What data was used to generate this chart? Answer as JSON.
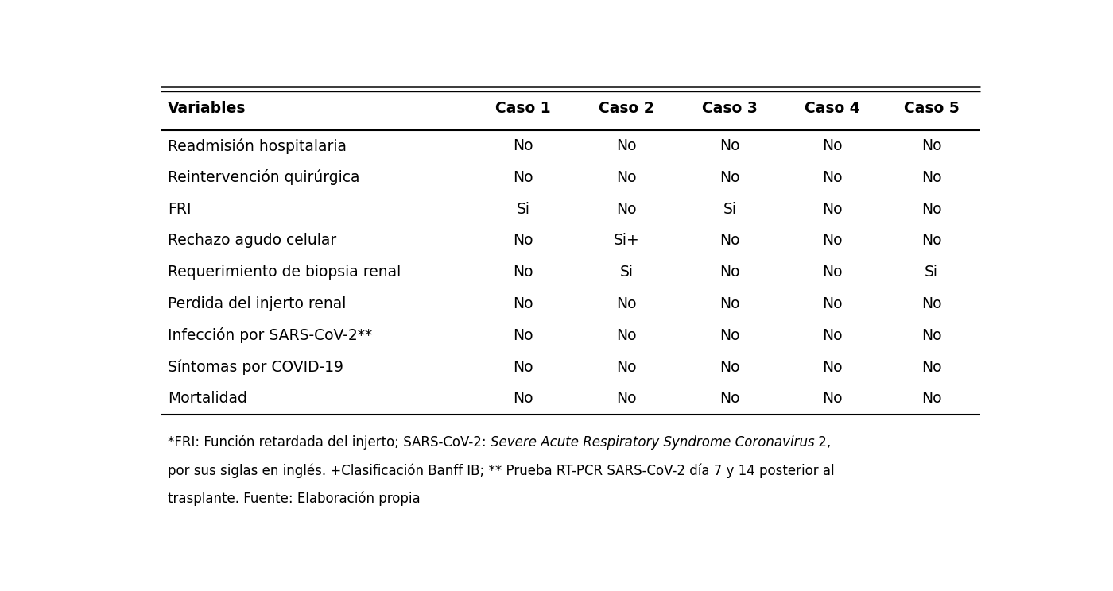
{
  "headers": [
    "Variables",
    "Caso 1",
    "Caso 2",
    "Caso 3",
    "Caso 4",
    "Caso 5"
  ],
  "rows": [
    [
      "Readmisión hospitalaria",
      "No",
      "No",
      "No",
      "No",
      "No"
    ],
    [
      "Reintervención quirúrgica",
      "No",
      "No",
      "No",
      "No",
      "No"
    ],
    [
      "FRI",
      "Si",
      "No",
      "Si",
      "No",
      "No"
    ],
    [
      "Rechazo agudo celular",
      "No",
      "Si+",
      "No",
      "No",
      "No"
    ],
    [
      "Requerimiento de biopsia renal",
      "No",
      "Si",
      "No",
      "No",
      "Si"
    ],
    [
      "Perdida del injerto renal",
      "No",
      "No",
      "No",
      "No",
      "No"
    ],
    [
      "Infección por SARS-CoV-2**",
      "No",
      "No",
      "No",
      "No",
      "No"
    ],
    [
      "Síntomas por COVID-19",
      "No",
      "No",
      "No",
      "No",
      "No"
    ],
    [
      "Mortalidad",
      "No",
      "No",
      "No",
      "No",
      "No"
    ]
  ],
  "footnote_line1_normal1": "*FRI: Función retardada del injerto; SARS-CoV-2: ",
  "footnote_line1_italic": "Severe Acute Respiratory Syndrome Coronavirus",
  "footnote_line1_normal2": " 2,",
  "footnote_line2": "por sus siglas en inglés. +Clasificación Banff IB; ** Prueba RT-PCR SARS-CoV-2 día 7 y 14 posterior al",
  "footnote_line3": "trasplante. Fuente: Elaboración propia",
  "header_fontsize": 13.5,
  "body_fontsize": 13.5,
  "footnote_fontsize": 12.0,
  "bg_color": "#ffffff",
  "text_color": "#000000",
  "line_color": "#000000"
}
